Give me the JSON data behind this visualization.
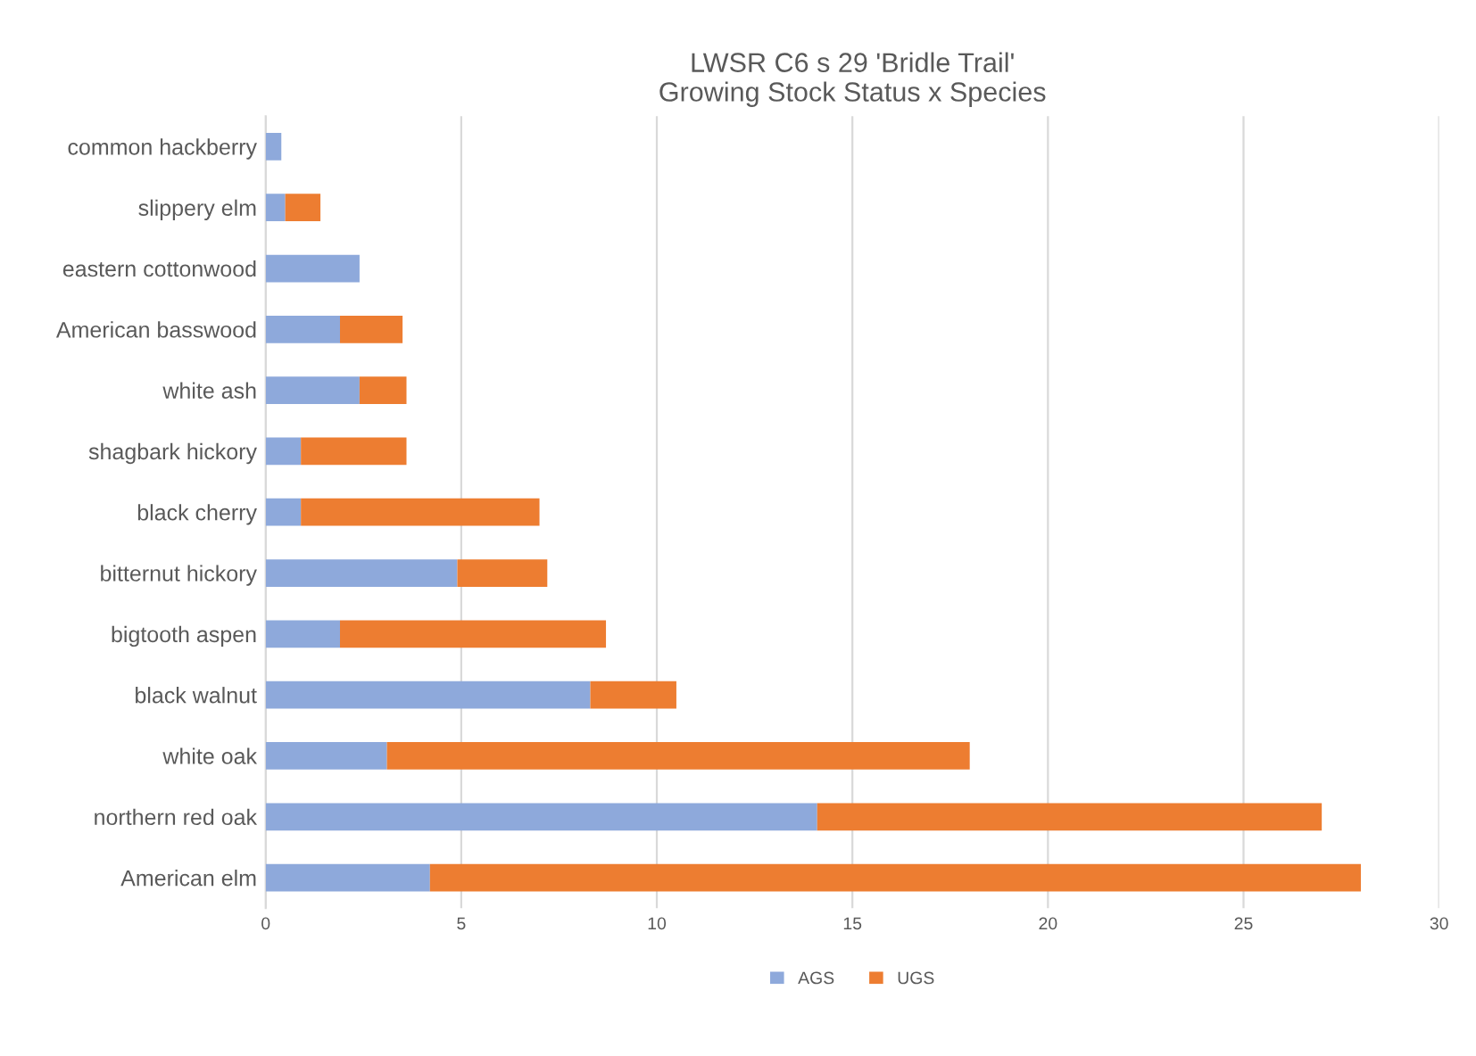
{
  "chart_data": {
    "type": "bar",
    "orientation": "horizontal",
    "stacked": true,
    "title": "LWSR C6 s 29 'Bridle Trail'\nGrowing Stock Status x Species",
    "categories": [
      "common hackberry",
      "slippery elm",
      "eastern cottonwood",
      "American basswood",
      "white ash",
      "shagbark hickory",
      "black cherry",
      "bitternut hickory",
      "bigtooth aspen",
      "black walnut",
      "white oak",
      "northern red oak",
      "American elm"
    ],
    "series": [
      {
        "name": "AGS",
        "color": "#8ea9db",
        "values": [
          0.4,
          0.5,
          2.4,
          1.9,
          2.4,
          0.9,
          0.9,
          4.9,
          1.9,
          8.3,
          3.1,
          14.1,
          4.2
        ]
      },
      {
        "name": "UGS",
        "color": "#ed7d31",
        "values": [
          null,
          0.9,
          null,
          1.6,
          1.2,
          2.7,
          6.1,
          2.3,
          6.8,
          2.2,
          14.9,
          12.9,
          23.8
        ]
      }
    ],
    "xlim": [
      0,
      30
    ],
    "xticks": [
      0,
      5,
      10,
      15,
      20,
      25,
      30
    ],
    "grid": "x",
    "legend": "bottom"
  }
}
